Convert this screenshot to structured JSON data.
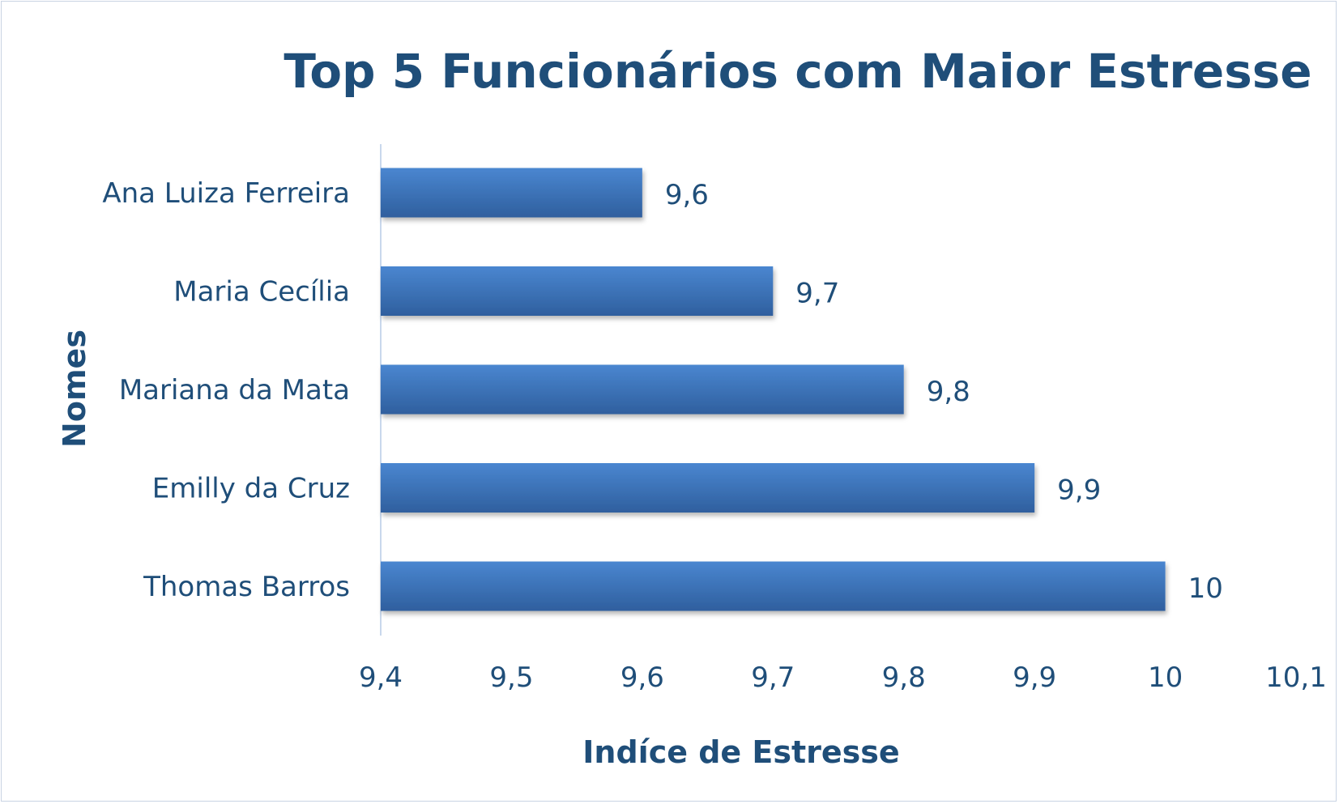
{
  "chart_data": {
    "type": "bar",
    "orientation": "horizontal",
    "title": "Top 5 Funcionários com Maior Estresse",
    "xlabel": "Indíce de Estresse",
    "ylabel": "Nomes",
    "categories": [
      "Ana Luiza Ferreira",
      "Maria Cecília",
      "Mariana da Mata",
      "Emilly da Cruz",
      "Thomas Barros"
    ],
    "values": [
      9.6,
      9.7,
      9.8,
      9.9,
      10
    ],
    "data_labels": [
      "9,6",
      "9,7",
      "9,8",
      "9,9",
      "10"
    ],
    "xlim": [
      9.4,
      10.1
    ],
    "ticks": [
      9.4,
      9.5,
      9.6,
      9.7,
      9.8,
      9.9,
      10,
      10.1
    ],
    "tick_labels": [
      "9,4",
      "9,5",
      "9,6",
      "9,7",
      "9,8",
      "9,9",
      "10",
      "10,1"
    ],
    "grid": false,
    "legend": "none",
    "colors": {
      "bar_top": "#4a86d0",
      "bar_bottom": "#2f5f9e",
      "text": "#1f4e79",
      "axis": "#c9d8ec"
    }
  }
}
